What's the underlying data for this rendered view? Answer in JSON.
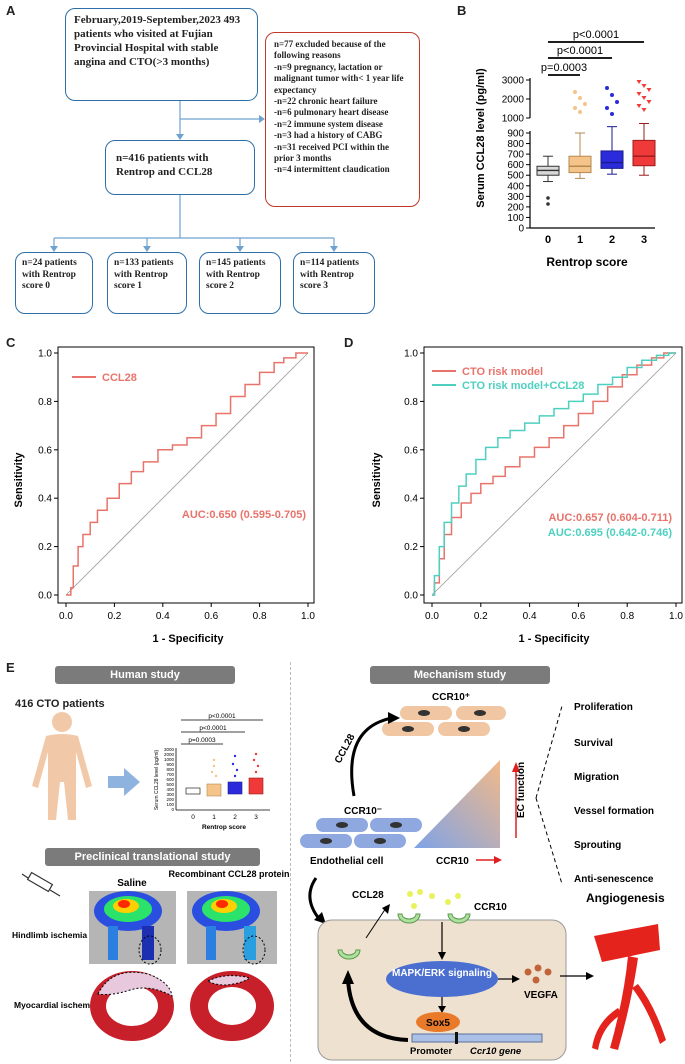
{
  "panel_labels": {
    "a": "A",
    "b": "B",
    "c": "C",
    "d": "D",
    "e": "E"
  },
  "flow": {
    "top_box": "February,2019-September,2023 493 patients who visited at Fujian Provincial Hospital with stable angina and CTO(>3 months)",
    "excluded_box": [
      "n=77 excluded because of the following reasons",
      "-n=9 pregnancy, lactation or malignant tumor with< 1 year life expectancy",
      "-n=22 chronic heart failure",
      "-n=6 pulmonary heart disease",
      "-n=2 immune system disease",
      "-n=3 had a history of CABG",
      "-n=31 received PCI within the prior 3 months",
      "-n=4 intermittent claudication"
    ],
    "middle_box": "n=416 patients with Rentrop and CCL28",
    "groups": [
      "n=24 patients with Rentrop score 0",
      "n=133 patients with Rentrop score 1",
      "n=145 patients with Rentrop score 2",
      "n=114 patients with Rentrop score 3"
    ]
  },
  "chart_data": [
    {
      "id": "B",
      "type": "box",
      "title": "",
      "xlabel": "Rentrop score",
      "ylabel": "Serum CCL28 level (pg/ml)",
      "categories": [
        "0",
        "1",
        "2",
        "3"
      ],
      "colors": [
        "#d9d9d9",
        "#f5c48a",
        "#2b2bdc",
        "#f03a3a"
      ],
      "yticks_lower": [
        "0",
        "100",
        "200",
        "300",
        "400",
        "500",
        "600",
        "700",
        "800",
        "900"
      ],
      "yticks_upper": [
        "1000",
        "2000",
        "3000"
      ],
      "boxes": [
        {
          "min": 440,
          "q1": 500,
          "median": 545,
          "q3": 585,
          "max": 680
        },
        {
          "min": 470,
          "q1": 525,
          "median": 585,
          "q3": 680,
          "max": 900
        },
        {
          "min": 510,
          "q1": 565,
          "median": 620,
          "q3": 730,
          "max": 960
        },
        {
          "min": 500,
          "q1": 590,
          "median": 680,
          "q3": 830,
          "max": 990
        }
      ],
      "comparisons": [
        {
          "pair": [
            "0",
            "1"
          ],
          "label": "p=0.0003"
        },
        {
          "pair": [
            "0",
            "2"
          ],
          "label": "p<0.0001"
        },
        {
          "pair": [
            "0",
            "3"
          ],
          "label": "p<0.0001"
        }
      ]
    },
    {
      "id": "C",
      "type": "line",
      "title": "",
      "xlabel": "1 - Specificity",
      "ylabel": "Sensitivity",
      "xticks": [
        "0.0",
        "0.2",
        "0.4",
        "0.6",
        "0.8",
        "1.0"
      ],
      "yticks": [
        "0.0",
        "0.2",
        "0.4",
        "0.6",
        "0.8",
        "1.0"
      ],
      "xlim": [
        0,
        1
      ],
      "ylim": [
        0,
        1
      ],
      "legend": "CCL28",
      "annotation": "AUC:0.650 (0.595-0.705)",
      "series": [
        {
          "name": "CCL28",
          "color": "#e8736b",
          "x": [
            0,
            0.02,
            0.03,
            0.05,
            0.07,
            0.1,
            0.13,
            0.17,
            0.22,
            0.27,
            0.32,
            0.38,
            0.44,
            0.5,
            0.56,
            0.62,
            0.68,
            0.74,
            0.8,
            0.86,
            0.9,
            0.95,
            1.0
          ],
          "y": [
            0,
            0.03,
            0.12,
            0.2,
            0.25,
            0.3,
            0.35,
            0.4,
            0.46,
            0.51,
            0.55,
            0.6,
            0.62,
            0.65,
            0.7,
            0.75,
            0.82,
            0.87,
            0.92,
            0.96,
            0.98,
            1.0,
            1.0
          ]
        }
      ]
    },
    {
      "id": "D",
      "type": "line",
      "title": "",
      "xlabel": "1 - Specificity",
      "ylabel": "Sensitivity",
      "xticks": [
        "0.0",
        "0.2",
        "0.4",
        "0.6",
        "0.8",
        "1.0"
      ],
      "yticks": [
        "0.0",
        "0.2",
        "0.4",
        "0.6",
        "0.8",
        "1.0"
      ],
      "xlim": [
        0,
        1
      ],
      "ylim": [
        0,
        1
      ],
      "legend": [
        "CTO risk model",
        "CTO risk model+CCL28"
      ],
      "annotations": [
        "AUC:0.657 (0.604-0.711)",
        "AUC:0.695 (0.642-0.746)"
      ],
      "series": [
        {
          "name": "CTO risk model",
          "color": "#e8736b",
          "x": [
            0,
            0.01,
            0.03,
            0.05,
            0.08,
            0.12,
            0.16,
            0.2,
            0.25,
            0.3,
            0.36,
            0.42,
            0.48,
            0.54,
            0.6,
            0.66,
            0.72,
            0.78,
            0.84,
            0.9,
            0.95,
            1.0
          ],
          "y": [
            0,
            0.05,
            0.15,
            0.25,
            0.32,
            0.38,
            0.42,
            0.46,
            0.49,
            0.53,
            0.57,
            0.61,
            0.65,
            0.7,
            0.75,
            0.8,
            0.86,
            0.91,
            0.95,
            0.98,
            1.0,
            1.0
          ]
        },
        {
          "name": "CTO risk model+CCL28",
          "color": "#4dd0c0",
          "x": [
            0,
            0.01,
            0.03,
            0.05,
            0.08,
            0.11,
            0.14,
            0.18,
            0.22,
            0.27,
            0.32,
            0.38,
            0.44,
            0.5,
            0.56,
            0.62,
            0.68,
            0.74,
            0.8,
            0.86,
            0.92,
            0.97,
            1.0
          ],
          "y": [
            0,
            0.08,
            0.2,
            0.3,
            0.38,
            0.45,
            0.5,
            0.56,
            0.61,
            0.65,
            0.68,
            0.71,
            0.74,
            0.77,
            0.8,
            0.83,
            0.87,
            0.9,
            0.94,
            0.97,
            0.99,
            1.0,
            1.0
          ]
        }
      ]
    }
  ],
  "panel_e": {
    "human_header": "Human study",
    "patients_label": "416 CTO patients",
    "mini_plot": {
      "ylabel": "Serum CCL28 level (pg/ml)",
      "xlabel": "Rentrop score",
      "p1": "p=0.0003",
      "p2": "p<0.0001",
      "p3": "p<0.0001",
      "yticks": [
        "3000",
        "2000",
        "1000",
        "900",
        "800",
        "700",
        "600",
        "500",
        "400",
        "300",
        "200",
        "100",
        "0"
      ],
      "xticks": [
        "0",
        "1",
        "2",
        "3"
      ]
    },
    "preclinical_header": "Preclinical translational study",
    "saline": "Saline",
    "recombinant": "Recombinant CCL28 protein",
    "hindlimb": "Hindlimb ischemia",
    "myocardial": "Myocardial ischemia",
    "mechanism_header": "Mechanism study",
    "ccr10_plus": "CCR10⁺",
    "ccr10_minus": "CCR10⁻",
    "ccl28_arrow": "CCL28",
    "endothelial": "Endothelial cell",
    "ccr10_axis": "CCR10",
    "ec_function": "EC function",
    "functions": [
      "Proliferation",
      "Survival",
      "Migration",
      "Vessel formation",
      "Sprouting",
      "Anti-senescence"
    ],
    "ccl28_label": "CCL28",
    "ccr10_label": "CCR10",
    "mapk": "MAPK/ERK signaling",
    "vegfa": "VEGFA",
    "sox5": "Sox5",
    "promoter": "Promoter",
    "gene": "Ccr10 gene",
    "angiogenesis": "Angiogenesis"
  }
}
